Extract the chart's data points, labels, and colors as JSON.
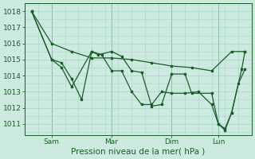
{
  "background_color": "#cdeae0",
  "grid_color": "#a8d5c8",
  "line_color": "#1a5c28",
  "ylabel_text": "Pression niveau de la mer( hPa )",
  "xtick_labels": [
    "Sam",
    "Mar",
    "Dim",
    "Lun"
  ],
  "xtick_positions": [
    16,
    52,
    88,
    116
  ],
  "xlim": [
    0,
    136
  ],
  "ylim": [
    1010.3,
    1018.5
  ],
  "yticks": [
    1011,
    1012,
    1013,
    1014,
    1015,
    1016,
    1017,
    1018
  ],
  "series1_x": [
    4,
    16,
    28,
    40,
    52,
    64,
    76,
    88,
    100,
    112,
    124,
    132
  ],
  "series1_y": [
    1018,
    1016,
    1015.5,
    1015.1,
    1015.1,
    1015.0,
    1014.8,
    1014.6,
    1014.5,
    1014.3,
    1015.5,
    1015.5
  ],
  "series2_x": [
    4,
    16,
    22,
    28,
    40,
    44,
    52,
    58,
    64,
    70,
    76,
    82,
    88,
    96,
    100,
    112,
    116,
    120,
    124,
    130,
    132
  ],
  "series2_y": [
    1018,
    1015,
    1014.5,
    1013.3,
    1015.5,
    1015.3,
    1015.5,
    1015.2,
    1014.3,
    1014.2,
    1012.1,
    1012.2,
    1014.1,
    1014.1,
    1012.9,
    1012.9,
    1011.0,
    1010.7,
    1011.7,
    1014.4,
    1015.5
  ],
  "series3_x": [
    4,
    16,
    22,
    28,
    34,
    40,
    46,
    52,
    58,
    64,
    70,
    76,
    82,
    88,
    96,
    104,
    112,
    116,
    120,
    124,
    128,
    132
  ],
  "series3_y": [
    1018,
    1015,
    1014.8,
    1013.8,
    1012.5,
    1015.5,
    1015.3,
    1014.3,
    1014.3,
    1013.0,
    1012.2,
    1012.2,
    1013.0,
    1012.9,
    1012.9,
    1013.0,
    1012.2,
    1011.0,
    1010.6,
    1011.7,
    1013.5,
    1014.4
  ],
  "marker_size": 1.8,
  "line_width": 0.9,
  "font_size_label": 7.5,
  "font_size_tick": 6.5
}
